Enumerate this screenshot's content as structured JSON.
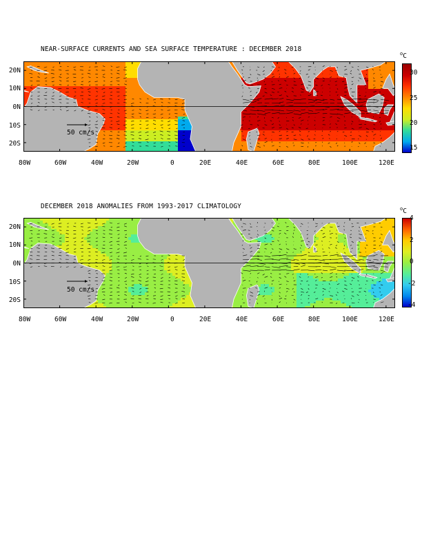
{
  "panels": [
    {
      "title": "NEAR-SURFACE CURRENTS AND SEA SURFACE TEMPERATURE : DECEMBER 2018",
      "unit": "C",
      "scale_label": "50 cm/s",
      "colorbar_ticks": [
        "30",
        "25",
        "20",
        "15"
      ],
      "colorbar_range": [
        14,
        32
      ],
      "colors": [
        "#0000cc",
        "#00aaee",
        "#33dd99",
        "#ccee22",
        "#ffdd00",
        "#ff8800",
        "#ff3300",
        "#cc0000",
        "#990000"
      ]
    },
    {
      "title": "DECEMBER 2018 ANOMALIES FROM 1993-2017 CLIMATOLOGY",
      "unit": "C",
      "scale_label": "50 cm/s",
      "colorbar_ticks": [
        "4",
        "2",
        "0",
        "-2",
        "-4"
      ],
      "colorbar_range": [
        -4,
        4
      ],
      "colors": [
        "#0000cc",
        "#0088ee",
        "#33ccee",
        "#55ee99",
        "#99ee44",
        "#ddee22",
        "#ffcc00",
        "#ff6600",
        "#cc0000"
      ]
    }
  ],
  "lat_labels": [
    "20N",
    "10N",
    "0N",
    "10S",
    "20S"
  ],
  "lon_labels": [
    "80W",
    "60W",
    "40W",
    "20W",
    "0",
    "20E",
    "40E",
    "60E",
    "80E",
    "100E",
    "120E"
  ],
  "land_color": "#b4b4b4"
}
